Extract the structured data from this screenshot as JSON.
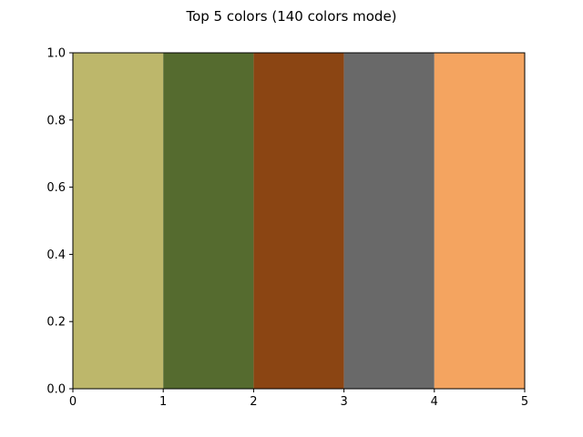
{
  "chart_data": {
    "type": "bar",
    "title": "Top 5 colors (140 colors mode)",
    "xlabel": "",
    "ylabel": "",
    "xlim": [
      0,
      5
    ],
    "ylim": [
      0,
      1
    ],
    "grid": false,
    "xticks": [
      "0",
      "1",
      "2",
      "3",
      "4",
      "5"
    ],
    "yticks": [
      "0.0",
      "0.2",
      "0.4",
      "0.6",
      "0.8",
      "1.0"
    ],
    "bars": [
      {
        "x_start": 0,
        "x_end": 1,
        "value": 1.0,
        "color": "#BDB76B"
      },
      {
        "x_start": 1,
        "x_end": 2,
        "value": 1.0,
        "color": "#556B2F"
      },
      {
        "x_start": 2,
        "x_end": 3,
        "value": 1.0,
        "color": "#8B4513"
      },
      {
        "x_start": 3,
        "x_end": 4,
        "value": 1.0,
        "color": "#696969"
      },
      {
        "x_start": 4,
        "x_end": 5,
        "value": 1.0,
        "color": "#F4A460"
      }
    ]
  }
}
